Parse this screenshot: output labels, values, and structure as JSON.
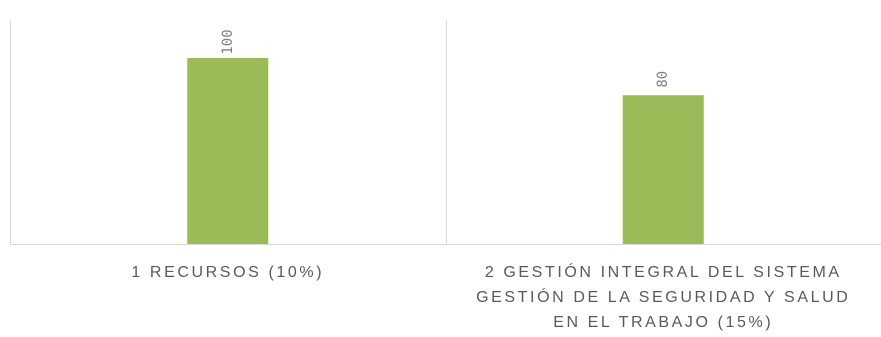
{
  "chart_data": {
    "type": "bar",
    "categories": [
      [
        "1 RECURSOS (10%)"
      ],
      [
        "2 GESTIÓN INTEGRAL DEL SISTEMA",
        "GESTIÓN DE LA SEGURIDAD Y SALUD",
        "EN EL TRABAJO (15%)"
      ]
    ],
    "values": [
      100,
      80
    ],
    "data_labels": [
      "100",
      "80"
    ],
    "title": "",
    "xlabel": "",
    "ylabel": "",
    "ylim": [
      0,
      120
    ],
    "grid": false,
    "legend": "none",
    "bar_color": "#9BBB59",
    "axis_color": "#D9D9D9",
    "label_color": "#595959",
    "data_label_color": "#7F7F7F"
  }
}
